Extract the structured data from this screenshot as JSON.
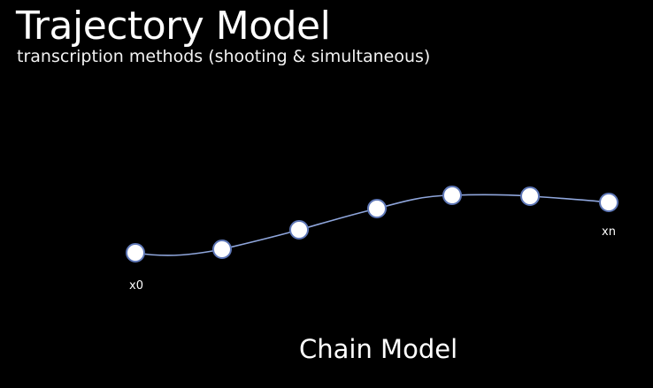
{
  "title": "Trajectory Model",
  "subtitle": "transcription methods (shooting & simultaneous)",
  "caption": "Chain Model",
  "colors": {
    "background": "#000000",
    "curve": "#8fa6dc",
    "node_fill": "#ffffff",
    "node_stroke": "#5f78b8",
    "text": "#ffffff"
  },
  "nodes": {
    "start_label": "x0",
    "end_label": "xn"
  }
}
